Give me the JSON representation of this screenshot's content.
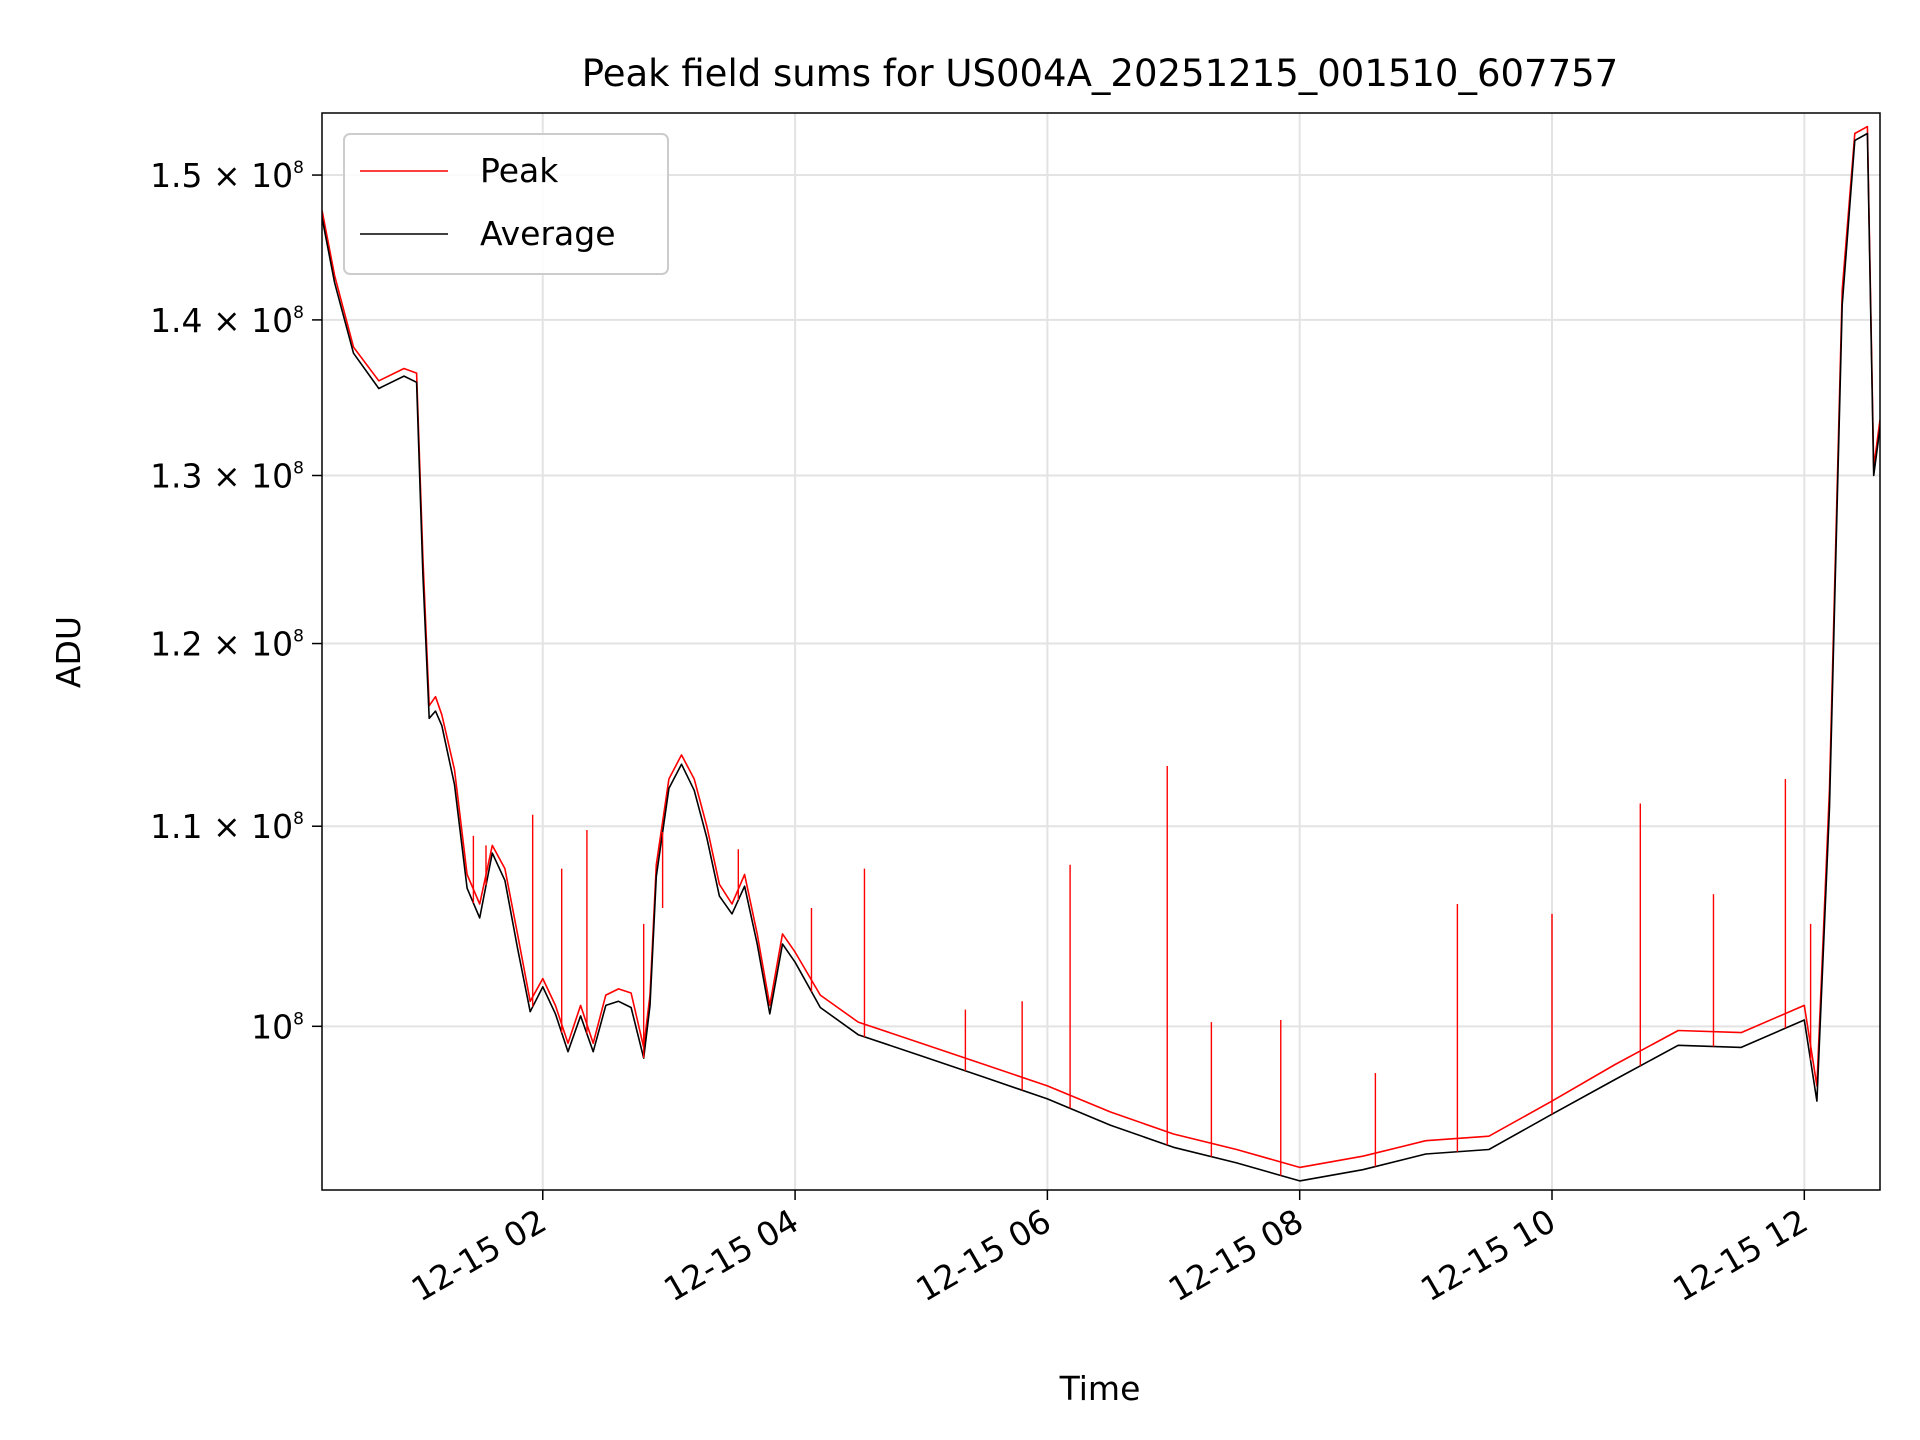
{
  "chart_data": {
    "type": "line",
    "title": "Peak field sums for US004A_20251215_001510_607757",
    "xlabel": "Time",
    "ylabel": "ADU",
    "x_unit": "hours since 12-15 00:00",
    "xlim": [
      0.25,
      12.6
    ],
    "ylim": [
      92500000,
      154500000
    ],
    "y_scale": "log",
    "grid": true,
    "legend_position": "top-left",
    "x_ticks": [
      {
        "value": 2,
        "label": "12-15 02"
      },
      {
        "value": 4,
        "label": "12-15 04"
      },
      {
        "value": 6,
        "label": "12-15 06"
      },
      {
        "value": 8,
        "label": "12-15 08"
      },
      {
        "value": 10,
        "label": "12-15 10"
      },
      {
        "value": 12,
        "label": "12-15 12"
      }
    ],
    "y_ticks": [
      {
        "value": 100000000,
        "mantissa": "10",
        "exponent": "8"
      },
      {
        "value": 110000000,
        "mantissa": "1.1 × 10",
        "exponent": "8"
      },
      {
        "value": 120000000,
        "mantissa": "1.2 × 10",
        "exponent": "8"
      },
      {
        "value": 130000000,
        "mantissa": "1.3 × 10",
        "exponent": "8"
      },
      {
        "value": 140000000,
        "mantissa": "1.4 × 10",
        "exponent": "8"
      },
      {
        "value": 150000000,
        "mantissa": "1.5 × 10",
        "exponent": "8"
      }
    ],
    "series": [
      {
        "name": "Peak",
        "color": "#ff0000",
        "x": [
          0.25,
          0.35,
          0.5,
          0.7,
          0.9,
          1.0,
          1.05,
          1.1,
          1.15,
          1.2,
          1.3,
          1.4,
          1.5,
          1.6,
          1.7,
          1.8,
          1.9,
          2.0,
          2.1,
          2.2,
          2.3,
          2.4,
          2.5,
          2.6,
          2.7,
          2.8,
          2.85,
          2.9,
          3.0,
          3.1,
          3.2,
          3.3,
          3.4,
          3.5,
          3.6,
          3.7,
          3.8,
          3.9,
          4.0,
          4.2,
          4.5,
          5.0,
          5.5,
          6.0,
          6.5,
          7.0,
          7.5,
          8.0,
          8.5,
          9.0,
          9.5,
          10.0,
          10.5,
          11.0,
          11.5,
          12.0,
          12.1,
          12.2,
          12.3,
          12.4,
          12.5,
          12.55,
          12.6
        ],
        "y": [
          147500000,
          143000000,
          138200000,
          136000000,
          136800000,
          136500000,
          125000000,
          116500000,
          117000000,
          116000000,
          113000000,
          107500000,
          106000000,
          109000000,
          107800000,
          104500000,
          101200000,
          102300000,
          101000000,
          99200000,
          101000000,
          99200000,
          101500000,
          101800000,
          101600000,
          99000000,
          101500000,
          108000000,
          112500000,
          113800000,
          112500000,
          110000000,
          107000000,
          106000000,
          107500000,
          104500000,
          101000000,
          104500000,
          103600000,
          101500000,
          100200000,
          99200000,
          98200000,
          97200000,
          96000000,
          95000000,
          94300000,
          93500000,
          94000000,
          94700000,
          94900000,
          96500000,
          98200000,
          99800000,
          99700000,
          101000000,
          97200000,
          112000000,
          142000000,
          153000000,
          153500000,
          130500000,
          133500000
        ]
      },
      {
        "name": "Average",
        "color": "#000000",
        "x": [
          0.25,
          0.35,
          0.5,
          0.7,
          0.9,
          1.0,
          1.05,
          1.1,
          1.15,
          1.2,
          1.3,
          1.4,
          1.5,
          1.6,
          1.7,
          1.8,
          1.9,
          2.0,
          2.1,
          2.2,
          2.3,
          2.4,
          2.5,
          2.6,
          2.7,
          2.8,
          2.85,
          2.9,
          3.0,
          3.1,
          3.2,
          3.3,
          3.4,
          3.5,
          3.6,
          3.7,
          3.8,
          3.9,
          4.0,
          4.2,
          4.5,
          5.0,
          5.5,
          6.0,
          6.5,
          7.0,
          7.5,
          8.0,
          8.5,
          9.0,
          9.5,
          10.0,
          10.5,
          11.0,
          11.5,
          12.0,
          12.1,
          12.2,
          12.3,
          12.4,
          12.5,
          12.55,
          12.6
        ],
        "y": [
          147000000,
          142500000,
          137800000,
          135500000,
          136300000,
          135900000,
          124000000,
          115800000,
          116200000,
          115400000,
          112200000,
          106800000,
          105300000,
          108600000,
          107200000,
          103800000,
          100700000,
          101900000,
          100600000,
          98800000,
          100500000,
          98800000,
          101000000,
          101200000,
          100900000,
          98500000,
          101000000,
          107400000,
          112000000,
          113300000,
          111900000,
          109400000,
          106400000,
          105500000,
          106900000,
          104000000,
          100600000,
          104000000,
          103100000,
          100900000,
          99600000,
          98600000,
          97600000,
          96600000,
          95400000,
          94400000,
          93700000,
          92900000,
          93400000,
          94100000,
          94300000,
          95900000,
          97500000,
          99100000,
          99000000,
          100300000,
          96500000,
          111000000,
          141000000,
          152500000,
          153000000,
          130000000,
          133000000
        ]
      }
    ],
    "peak_spikes": [
      {
        "x": 1.45,
        "y": 109500000
      },
      {
        "x": 1.55,
        "y": 109000000
      },
      {
        "x": 1.92,
        "y": 110600000
      },
      {
        "x": 2.15,
        "y": 107800000
      },
      {
        "x": 2.35,
        "y": 109800000
      },
      {
        "x": 2.8,
        "y": 105000000
      },
      {
        "x": 2.95,
        "y": 105800000
      },
      {
        "x": 3.55,
        "y": 108800000
      },
      {
        "x": 4.13,
        "y": 105800000
      },
      {
        "x": 4.55,
        "y": 107800000
      },
      {
        "x": 5.35,
        "y": 100800000
      },
      {
        "x": 5.8,
        "y": 101200000
      },
      {
        "x": 6.18,
        "y": 108000000
      },
      {
        "x": 6.95,
        "y": 113200000
      },
      {
        "x": 7.3,
        "y": 100200000
      },
      {
        "x": 7.85,
        "y": 100300000
      },
      {
        "x": 8.6,
        "y": 97800000
      },
      {
        "x": 9.25,
        "y": 106000000
      },
      {
        "x": 10.0,
        "y": 105500000
      },
      {
        "x": 10.7,
        "y": 111200000
      },
      {
        "x": 11.28,
        "y": 106500000
      },
      {
        "x": 11.85,
        "y": 112500000
      },
      {
        "x": 12.05,
        "y": 105000000
      }
    ]
  }
}
